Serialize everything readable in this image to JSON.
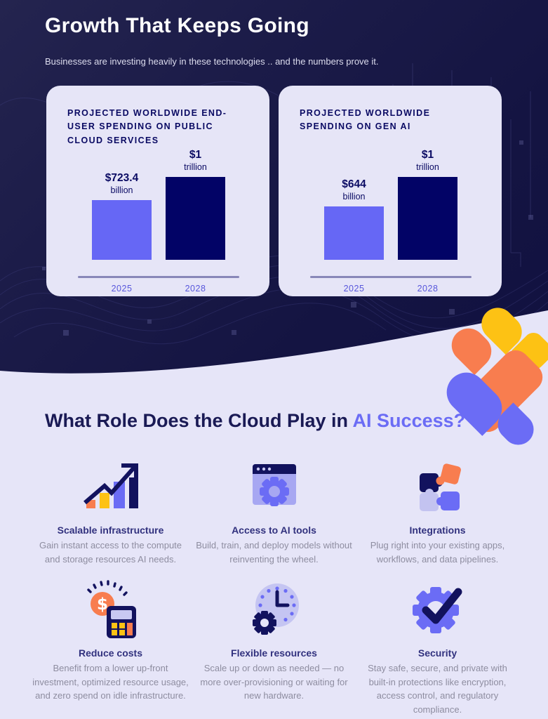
{
  "header": {
    "title": "Growth That Keeps Going",
    "subtitle": "Businesses are investing heavily in these technologies .. and the numbers prove it."
  },
  "chart_data": [
    {
      "type": "bar",
      "title": "PROJECTED WORLDWIDE END-USER SPENDING ON PUBLIC CLOUD SERVICES",
      "categories": [
        "2025",
        "2028"
      ],
      "values": [
        723.4,
        1000
      ],
      "unit": "USD billions",
      "bars": [
        {
          "value": 723.4,
          "label_big": "$723.4",
          "label_small": "billion",
          "year": "2025",
          "color": "#6667F5"
        },
        {
          "value": 1000,
          "label_big": "$1",
          "label_small": "trillion",
          "year": "2028",
          "color": "#020366"
        }
      ],
      "ylim": [
        0,
        1000
      ],
      "grid": false,
      "legend": false
    },
    {
      "type": "bar",
      "title": "PROJECTED WORLDWIDE SPENDING ON GEN AI",
      "categories": [
        "2025",
        "2028"
      ],
      "values": [
        644,
        1000
      ],
      "unit": "USD billions",
      "bars": [
        {
          "value": 644,
          "label_big": "$644",
          "label_small": "billion",
          "year": "2025",
          "color": "#6667F5"
        },
        {
          "value": 1000,
          "label_big": "$1",
          "label_small": "trillion",
          "year": "2028",
          "color": "#020366"
        }
      ],
      "ylim": [
        0,
        1000
      ],
      "grid": false,
      "legend": false
    }
  ],
  "section2": {
    "heading_prefix": "What Role Does the Cloud Play in ",
    "heading_accent": "AI Success?",
    "features": [
      {
        "icon": "growth-chart-icon",
        "title": "Scalable infrastructure",
        "desc": "Gain instant access to the compute and storage resources AI needs."
      },
      {
        "icon": "browser-gear-icon",
        "title": "Access to AI tools",
        "desc": "Build, train, and deploy models without reinventing the wheel."
      },
      {
        "icon": "puzzle-icon",
        "title": "Integrations",
        "desc": "Plug right into your existing apps, workflows, and data pipelines."
      },
      {
        "icon": "calculator-coin-icon",
        "title": "Reduce costs",
        "desc": "Benefit from a lower up-front investment, optimized resource usage, and zero spend on idle infrastructure."
      },
      {
        "icon": "clock-gear-icon",
        "title": "Flexible resources",
        "desc": "Scale up or down as needed — no more over-provisioning or waiting for new hardware."
      },
      {
        "icon": "gear-check-icon",
        "title": "Security",
        "desc": "Stay safe, secure, and private with built-in protections like encryption, access control, and regulatory compliance."
      }
    ]
  },
  "colors": {
    "dark_bg": "#16164466",
    "card_bg": "#E6E5F7",
    "bar_light": "#6667F5",
    "bar_dark": "#020366",
    "accent_purple": "#6B6CF5",
    "orange": "#F87D4F",
    "yellow": "#FDC214",
    "navy_text": "#0a0a63",
    "body_gray": "#8E8DA0",
    "light_bg": "#E6E5F8"
  }
}
